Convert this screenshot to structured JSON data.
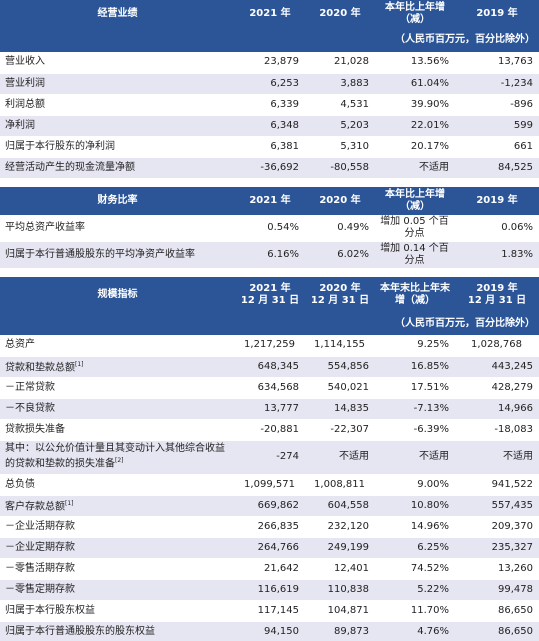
{
  "sections": [
    {
      "header": {
        "title": "经营业绩",
        "columns": [
          "2021 年",
          "2020 年",
          "本年比上年增（减）",
          "2019 年"
        ],
        "unit": "（人民币百万元，百分比除外）"
      },
      "rows": [
        {
          "label": "营业收入",
          "cells": [
            "23,879",
            "21,028",
            "13.56%",
            "13,763"
          ]
        },
        {
          "label": "营业利润",
          "cells": [
            "6,253",
            "3,883",
            "61.04%",
            "-1,234"
          ]
        },
        {
          "label": "利润总额",
          "cells": [
            "6,339",
            "4,531",
            "39.90%",
            "-896"
          ]
        },
        {
          "label": "净利润",
          "cells": [
            "6,348",
            "5,203",
            "22.01%",
            "599"
          ]
        },
        {
          "label": "归属于本行股东的净利润",
          "cells": [
            "6,381",
            "5,310",
            "20.17%",
            "661"
          ]
        },
        {
          "label": "经营活动产生的现金流量净额",
          "cells": [
            "-36,692",
            "-80,558",
            "不适用",
            "84,525"
          ]
        }
      ]
    },
    {
      "header": {
        "title": "财务比率",
        "columns": [
          "2021 年",
          "2020 年",
          "本年比上年增（减）",
          "2019 年"
        ]
      },
      "rows": [
        {
          "label": "平均总资产收益率",
          "cells": [
            "0.54%",
            "0.49%",
            "增加 0.05 个百分点",
            "0.06%"
          ]
        },
        {
          "label": "归属于本行普通股股东的平均净资产收益率",
          "cells": [
            "6.16%",
            "6.02%",
            "增加 0.14 个百分点",
            "1.83%"
          ]
        }
      ]
    },
    {
      "header": {
        "title": "规模指标",
        "columns": [
          "2021 年\n12 月 31 日",
          "2020 年\n12 月 31 日",
          "本年末比上年末增（减）",
          "2019 年\n12 月 31 日"
        ],
        "unit": "（人民币百万元，百分比除外）"
      },
      "rows": [
        {
          "label": "总资产",
          "cells": [
            "1,217,259",
            "1,114,155",
            "9.25%",
            "1,028,768"
          ]
        },
        {
          "label": "贷款和垫款总额",
          "note": "[1]",
          "cells": [
            "648,345",
            "554,856",
            "16.85%",
            "443,245"
          ]
        },
        {
          "label": "－正常贷款",
          "cells": [
            "634,568",
            "540,021",
            "17.51%",
            "428,279"
          ]
        },
        {
          "label": "－不良贷款",
          "cells": [
            "13,777",
            "14,835",
            "-7.13%",
            "14,966"
          ]
        },
        {
          "label": "贷款损失准备",
          "cells": [
            "-20,881",
            "-22,307",
            "-6.39%",
            "-18,083"
          ]
        },
        {
          "label": "其中：以公允价值计量且其变动计入其他综合收益的贷款和垫款的损失准备",
          "note": "[2]",
          "cells": [
            "-274",
            "不适用",
            "不适用",
            "不适用"
          ]
        },
        {
          "label": "总负债",
          "cells": [
            "1,099,571",
            "1,008,811",
            "9.00%",
            "941,522"
          ]
        },
        {
          "label": "客户存款总额",
          "note": "[1]",
          "cells": [
            "669,862",
            "604,558",
            "10.80%",
            "557,435"
          ]
        },
        {
          "label": "－企业活期存款",
          "cells": [
            "266,835",
            "232,120",
            "14.96%",
            "209,370"
          ]
        },
        {
          "label": "－企业定期存款",
          "cells": [
            "264,766",
            "249,199",
            "6.25%",
            "235,327"
          ]
        },
        {
          "label": "－零售活期存款",
          "cells": [
            "21,642",
            "12,401",
            "74.52%",
            "13,260"
          ]
        },
        {
          "label": "－零售定期存款",
          "cells": [
            "116,619",
            "110,838",
            "5.22%",
            "99,478"
          ]
        },
        {
          "label": "归属于本行股东权益",
          "cells": [
            "117,145",
            "104,871",
            "11.70%",
            "86,650"
          ]
        },
        {
          "label": "归属于本行普通股股东的股东权益",
          "cells": [
            "94,150",
            "89,873",
            "4.76%",
            "86,650"
          ]
        }
      ]
    }
  ]
}
